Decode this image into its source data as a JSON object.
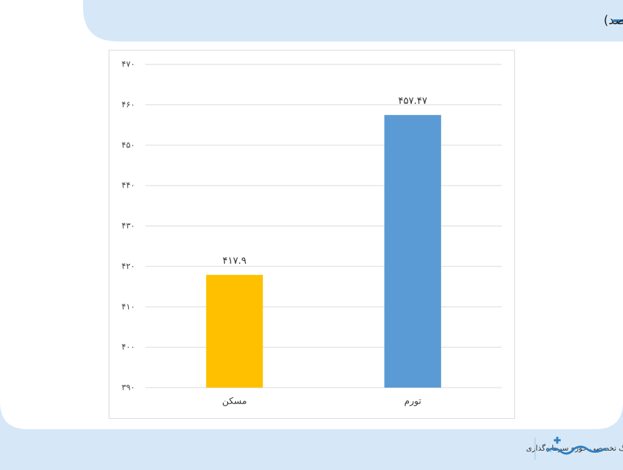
{
  "chart_data": {
    "type": "bar",
    "title": "بازدهی مسکن در بازه پنج ساله (درصد)",
    "categories": [
      "مسکن",
      "تورم"
    ],
    "values": [
      417.9,
      457.47
    ],
    "value_labels": [
      "۴۱۷.۹",
      "۴۵۷.۴۷"
    ],
    "colors": [
      "#ffc000",
      "#5b9bd5"
    ],
    "ylim": [
      390,
      470
    ],
    "yticks": [
      {
        "value": 390,
        "label": "۳۹۰"
      },
      {
        "value": 400,
        "label": "۴۰۰"
      },
      {
        "value": 410,
        "label": "۴۱۰"
      },
      {
        "value": 420,
        "label": "۴۲۰"
      },
      {
        "value": 430,
        "label": "۴۳۰"
      },
      {
        "value": 440,
        "label": "۴۴۰"
      },
      {
        "value": 450,
        "label": "۴۵۰"
      },
      {
        "value": 460,
        "label": "۴۶۰"
      },
      {
        "value": 470,
        "label": "۴۷۰"
      }
    ],
    "grid": true
  },
  "footer": {
    "text": "وبلاگ تخصصی حوزه سرمایه‌گذاری"
  }
}
